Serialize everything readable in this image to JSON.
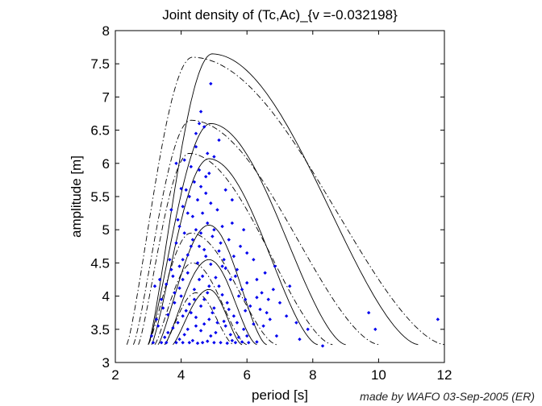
{
  "chart_data": {
    "type": "scatter",
    "title": "Joint density of (Tc,Ac)_{v =-0.032198}",
    "xlabel": "period [s]",
    "ylabel": "amplitude [m]",
    "xlim": [
      2,
      12
    ],
    "ylim": [
      3,
      8
    ],
    "xticks": [
      2,
      4,
      6,
      8,
      10,
      12
    ],
    "yticks": [
      3,
      3.5,
      4,
      4.5,
      5,
      5.5,
      6,
      6.5,
      7,
      7.5,
      8
    ],
    "grid": false,
    "credit": "made by WAFO 03-Sep-2005 (ER)",
    "colors": {
      "points": "#0000ee",
      "contours": "#000000",
      "axes": "#000000"
    },
    "contours_solid": [
      {
        "peak_x": 4.95,
        "peak_y": 7.65,
        "x_start": 3.0,
        "x_end": 11.2
      },
      {
        "peak_x": 4.9,
        "peak_y": 6.6,
        "x_start": 3.0,
        "x_end": 9.0
      },
      {
        "peak_x": 4.85,
        "peak_y": 6.07,
        "x_start": 3.1,
        "x_end": 8.15
      },
      {
        "peak_x": 4.85,
        "peak_y": 5.07,
        "x_start": 3.3,
        "x_end": 6.6
      },
      {
        "peak_x": 4.85,
        "peak_y": 4.55,
        "x_start": 3.5,
        "x_end": 6.3
      },
      {
        "peak_x": 4.85,
        "peak_y": 4.1,
        "x_start": 3.75,
        "x_end": 5.85
      }
    ],
    "contours_dashdot": [
      {
        "peak_x": 4.35,
        "peak_y": 7.6,
        "x_start": 2.35,
        "x_end": 12.0
      },
      {
        "peak_x": 4.3,
        "peak_y": 6.65,
        "x_start": 2.55,
        "x_end": 10.0
      },
      {
        "peak_x": 4.25,
        "peak_y": 6.15,
        "x_start": 2.7,
        "x_end": 8.6
      },
      {
        "peak_x": 4.3,
        "peak_y": 4.95,
        "x_start": 3.0,
        "x_end": 6.9
      },
      {
        "peak_x": 4.35,
        "peak_y": 4.5,
        "x_start": 3.2,
        "x_end": 6.0
      },
      {
        "peak_x": 4.45,
        "peak_y": 4.05,
        "x_start": 3.5,
        "x_end": 5.6
      }
    ],
    "points": [
      [
        4.6,
        6.78
      ],
      [
        4.9,
        7.2
      ],
      [
        4.55,
        6.6
      ],
      [
        4.7,
        6.55
      ],
      [
        4.45,
        6.45
      ],
      [
        5.15,
        6.35
      ],
      [
        4.45,
        6.25
      ],
      [
        4.8,
        6.15
      ],
      [
        4.1,
        6.05
      ],
      [
        5.0,
        6.1
      ],
      [
        4.3,
        5.95
      ],
      [
        4.55,
        5.9
      ],
      [
        4.85,
        5.85
      ],
      [
        3.85,
        6.0
      ],
      [
        4.4,
        5.72
      ],
      [
        4.6,
        5.65
      ],
      [
        4.15,
        5.6
      ],
      [
        4.75,
        5.55
      ],
      [
        5.35,
        5.6
      ],
      [
        4.25,
        5.5
      ],
      [
        4.5,
        5.45
      ],
      [
        4.9,
        5.4
      ],
      [
        4.05,
        5.35
      ],
      [
        5.1,
        5.3
      ],
      [
        4.65,
        5.25
      ],
      [
        4.35,
        5.2
      ],
      [
        3.9,
        5.15
      ],
      [
        4.8,
        5.1
      ],
      [
        5.25,
        5.05
      ],
      [
        4.45,
        5.0
      ],
      [
        4.1,
        4.95
      ],
      [
        4.95,
        4.9
      ],
      [
        5.45,
        4.85
      ],
      [
        3.85,
        4.8
      ],
      [
        4.3,
        4.75
      ],
      [
        4.7,
        4.7
      ],
      [
        5.15,
        4.68
      ],
      [
        5.6,
        4.6
      ],
      [
        4.05,
        4.55
      ],
      [
        4.5,
        4.5
      ],
      [
        4.9,
        4.48
      ],
      [
        5.35,
        4.42
      ],
      [
        3.7,
        4.4
      ],
      [
        4.2,
        4.35
      ],
      [
        4.65,
        4.3
      ],
      [
        5.05,
        4.28
      ],
      [
        5.5,
        4.25
      ],
      [
        6.0,
        4.2
      ],
      [
        3.55,
        4.18
      ],
      [
        3.95,
        4.12
      ],
      [
        4.4,
        4.1
      ],
      [
        4.8,
        4.05
      ],
      [
        5.25,
        4.02
      ],
      [
        5.75,
        4.0
      ],
      [
        6.3,
        3.98
      ],
      [
        3.4,
        3.95
      ],
      [
        3.8,
        3.9
      ],
      [
        4.25,
        3.88
      ],
      [
        4.6,
        3.85
      ],
      [
        5.0,
        3.82
      ],
      [
        5.45,
        3.8
      ],
      [
        5.95,
        3.78
      ],
      [
        6.6,
        3.75
      ],
      [
        3.6,
        3.72
      ],
      [
        4.05,
        3.7
      ],
      [
        4.45,
        3.68
      ],
      [
        4.85,
        3.65
      ],
      [
        5.3,
        3.62
      ],
      [
        5.7,
        3.6
      ],
      [
        6.2,
        3.58
      ],
      [
        3.3,
        3.55
      ],
      [
        3.75,
        3.52
      ],
      [
        4.2,
        3.5
      ],
      [
        4.6,
        3.48
      ],
      [
        5.05,
        3.45
      ],
      [
        5.5,
        3.42
      ],
      [
        6.0,
        3.4
      ],
      [
        6.9,
        3.4
      ],
      [
        3.5,
        3.38
      ],
      [
        3.95,
        3.35
      ],
      [
        4.35,
        3.33
      ],
      [
        4.8,
        3.32
      ],
      [
        5.2,
        3.3
      ],
      [
        5.65,
        3.3
      ],
      [
        6.3,
        3.31
      ],
      [
        3.15,
        3.3
      ],
      [
        3.85,
        3.3
      ],
      [
        4.5,
        3.29
      ],
      [
        5.4,
        3.29
      ],
      [
        4.2,
        4.62
      ],
      [
        4.75,
        4.6
      ],
      [
        5.3,
        4.55
      ],
      [
        4.6,
        4.95
      ],
      [
        5.0,
        5.0
      ],
      [
        5.2,
        4.8
      ],
      [
        4.35,
        4.85
      ],
      [
        3.95,
        4.45
      ],
      [
        4.55,
        4.25
      ],
      [
        5.15,
        4.15
      ],
      [
        5.85,
        4.1
      ],
      [
        4.0,
        4.0
      ],
      [
        4.7,
        3.95
      ],
      [
        5.4,
        3.9
      ],
      [
        6.1,
        3.85
      ],
      [
        3.45,
        3.82
      ],
      [
        4.15,
        3.78
      ],
      [
        4.95,
        3.75
      ],
      [
        5.6,
        3.7
      ],
      [
        3.9,
        3.6
      ],
      [
        4.7,
        3.58
      ],
      [
        5.35,
        3.55
      ],
      [
        6.5,
        3.55
      ],
      [
        4.1,
        3.42
      ],
      [
        4.9,
        3.4
      ],
      [
        5.75,
        3.38
      ],
      [
        3.6,
        3.45
      ],
      [
        4.45,
        3.55
      ],
      [
        5.9,
        3.5
      ],
      [
        6.7,
        3.65
      ],
      [
        7.2,
        3.7
      ],
      [
        6.45,
        4.05
      ],
      [
        6.8,
        4.1
      ],
      [
        6.55,
        4.35
      ],
      [
        7.0,
        3.9
      ],
      [
        5.7,
        4.4
      ],
      [
        6.2,
        4.55
      ],
      [
        6.0,
        4.65
      ],
      [
        5.8,
        4.75
      ],
      [
        6.3,
        4.25
      ],
      [
        7.6,
        3.35
      ],
      [
        7.5,
        3.6
      ],
      [
        7.85,
        3.5
      ],
      [
        8.3,
        3.25
      ],
      [
        9.9,
        3.5
      ],
      [
        9.7,
        3.75
      ],
      [
        11.8,
        3.65
      ],
      [
        7.3,
        4.15
      ],
      [
        6.85,
        4.45
      ],
      [
        5.55,
        5.1
      ],
      [
        5.9,
        5.0
      ],
      [
        4.2,
        5.25
      ],
      [
        3.75,
        4.3
      ],
      [
        3.65,
        4.55
      ],
      [
        3.35,
        4.25
      ],
      [
        3.25,
        3.65
      ],
      [
        3.2,
        4.15
      ],
      [
        3.1,
        3.4
      ],
      [
        3.4,
        3.3
      ],
      [
        3.55,
        3.3
      ],
      [
        4.05,
        3.3
      ],
      [
        4.25,
        3.3
      ],
      [
        4.65,
        3.3
      ],
      [
        5.0,
        3.3
      ],
      [
        5.55,
        3.33
      ],
      [
        5.85,
        3.31
      ],
      [
        6.05,
        3.3
      ],
      [
        4.0,
        5.62
      ],
      [
        3.7,
        5.3
      ],
      [
        4.75,
        5.8
      ],
      [
        5.55,
        5.45
      ],
      [
        3.95,
        5.05
      ],
      [
        5.25,
        4.45
      ],
      [
        4.85,
        4.15
      ],
      [
        4.4,
        3.95
      ],
      [
        5.1,
        3.6
      ],
      [
        5.95,
        3.95
      ],
      [
        6.4,
        3.8
      ],
      [
        6.65,
        3.95
      ],
      [
        4.3,
        3.75
      ],
      [
        3.8,
        4.05
      ],
      [
        4.55,
        4.75
      ],
      [
        4.05,
        4.25
      ],
      [
        5.65,
        4.3
      ]
    ]
  }
}
